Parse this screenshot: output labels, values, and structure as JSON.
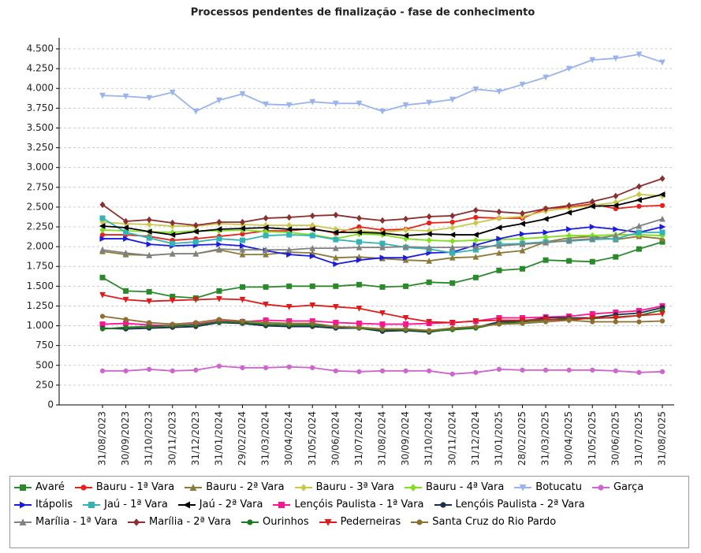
{
  "chart_data": {
    "type": "line",
    "title": "Processos pendentes de finalização - fase de conhecimento",
    "categories": [
      "31/08/2023",
      "30/09/2023",
      "31/10/2023",
      "30/11/2023",
      "31/12/2023",
      "31/01/2024",
      "29/02/2024",
      "31/03/2024",
      "30/04/2024",
      "31/05/2024",
      "30/06/2024",
      "31/07/2024",
      "31/08/2024",
      "30/09/2024",
      "31/10/2024",
      "30/11/2024",
      "31/12/2024",
      "31/01/2025",
      "28/02/2025",
      "31/03/2025",
      "30/04/2025",
      "31/05/2025",
      "30/06/2025",
      "31/07/2025",
      "31/08/2025"
    ],
    "ylim": [
      0,
      4500
    ],
    "yticks": [
      0,
      250,
      500,
      750,
      {
        "value": 1000,
        "label": "1.000"
      },
      {
        "value": 1250,
        "label": "1.250"
      },
      {
        "value": 1500,
        "label": "1.500"
      },
      {
        "value": 1750,
        "label": "1.750"
      },
      {
        "value": 2000,
        "label": "2.000"
      },
      {
        "value": 2250,
        "label": "2.250"
      },
      {
        "value": 2500,
        "label": "2.500"
      },
      {
        "value": 2750,
        "label": "2.750"
      },
      {
        "value": 3000,
        "label": "3.000"
      },
      {
        "value": 3250,
        "label": "3.250"
      },
      {
        "value": 3500,
        "label": "3.500"
      },
      {
        "value": 3750,
        "label": "3.750"
      },
      {
        "value": 4000,
        "label": "4.000"
      },
      {
        "value": 4250,
        "label": "4.250"
      },
      {
        "value": 4500,
        "label": "4.500"
      }
    ],
    "grid": true,
    "legend": "bottom",
    "series": [
      {
        "name": "Avaré",
        "color": "#2a8a2a",
        "marker": "square",
        "values": [
          1610,
          1440,
          1430,
          1370,
          1350,
          1440,
          1490,
          1490,
          1500,
          1500,
          1500,
          1520,
          1490,
          1500,
          1550,
          1540,
          1610,
          1700,
          1720,
          1830,
          1820,
          1810,
          1870,
          1970,
          2060
        ]
      },
      {
        "name": "Bauru - 1ª Vara",
        "color": "#e8211a",
        "marker": "circle",
        "values": [
          2150,
          2150,
          2130,
          2080,
          2100,
          2130,
          2160,
          2200,
          2200,
          2230,
          2170,
          2250,
          2210,
          2220,
          2300,
          2310,
          2370,
          2360,
          2360,
          2480,
          2500,
          2540,
          2480,
          2510,
          2520
        ]
      },
      {
        "name": "Bauru - 2ª Vara",
        "color": "#8b7a3a",
        "marker": "triangle-up",
        "values": [
          1940,
          1900,
          1890,
          1910,
          1910,
          1960,
          1900,
          1900,
          1930,
          1920,
          1860,
          1870,
          1850,
          1830,
          1820,
          1860,
          1870,
          1920,
          1950,
          2060,
          2110,
          2130,
          2090,
          2130,
          2100
        ]
      },
      {
        "name": "Bauru - 3ª Vara",
        "color": "#c8c84a",
        "marker": "diamond",
        "values": [
          2310,
          2290,
          2280,
          2260,
          2260,
          2290,
          2280,
          2270,
          2270,
          2270,
          2220,
          2200,
          2180,
          2210,
          2200,
          2240,
          2300,
          2360,
          2380,
          2450,
          2490,
          2520,
          2560,
          2660,
          2640
        ]
      },
      {
        "name": "Bauru - 4ª Vara",
        "color": "#7fe01a",
        "marker": "diamond",
        "values": [
          2210,
          2200,
          2190,
          2180,
          2200,
          2200,
          2210,
          2190,
          2180,
          2150,
          2100,
          2160,
          2150,
          2100,
          2080,
          2070,
          2080,
          2090,
          2100,
          2120,
          2140,
          2140,
          2150,
          2150,
          2140
        ]
      },
      {
        "name": "Botucatu",
        "color": "#99b4ec",
        "marker": "triangle-down",
        "values": [
          3910,
          3900,
          3880,
          3950,
          3710,
          3850,
          3930,
          3800,
          3790,
          3830,
          3810,
          3810,
          3710,
          3790,
          3820,
          3860,
          3990,
          3960,
          4050,
          4140,
          4250,
          4360,
          4380,
          4430,
          4330
        ]
      },
      {
        "name": "Garça",
        "color": "#cc66cc",
        "marker": "circle",
        "values": [
          430,
          430,
          450,
          430,
          440,
          490,
          470,
          470,
          480,
          470,
          430,
          420,
          430,
          430,
          430,
          390,
          410,
          450,
          440,
          440,
          440,
          440,
          430,
          410,
          420
        ]
      },
      {
        "name": "Itápolis",
        "color": "#1a1ae0",
        "marker": "triangle-right",
        "values": [
          2100,
          2100,
          2030,
          2010,
          2020,
          2030,
          2010,
          1950,
          1900,
          1880,
          1780,
          1830,
          1860,
          1860,
          1920,
          1930,
          2020,
          2100,
          2160,
          2180,
          2220,
          2250,
          2220,
          2180,
          2250
        ]
      },
      {
        "name": "Jaú - 1ª Vara",
        "color": "#33b3b3",
        "marker": "square",
        "values": [
          2360,
          2180,
          2110,
          2040,
          2060,
          2100,
          2080,
          2140,
          2150,
          2140,
          2090,
          2060,
          2040,
          1990,
          1970,
          1920,
          1960,
          2030,
          2040,
          2060,
          2070,
          2090,
          2100,
          2180,
          2180
        ]
      },
      {
        "name": "Jaú - 2ª Vara",
        "color": "#000000",
        "marker": "triangle-left",
        "values": [
          2260,
          2240,
          2190,
          2150,
          2190,
          2220,
          2230,
          2240,
          2220,
          2220,
          2180,
          2180,
          2170,
          2140,
          2160,
          2150,
          2150,
          2240,
          2290,
          2350,
          2430,
          2510,
          2520,
          2590,
          2660
        ]
      },
      {
        "name": "Lençóis Paulista - 1ª Vara",
        "color": "#ff1493",
        "marker": "square",
        "values": [
          1020,
          1030,
          1010,
          1000,
          1020,
          1060,
          1050,
          1070,
          1060,
          1060,
          1040,
          1030,
          1020,
          1020,
          1030,
          1040,
          1060,
          1100,
          1100,
          1110,
          1120,
          1150,
          1170,
          1190,
          1250
        ]
      },
      {
        "name": "Lençóis Paulista - 2ª Vara",
        "color": "#1c2f4a",
        "marker": "circle",
        "values": [
          970,
          960,
          970,
          980,
          990,
          1040,
          1030,
          1000,
          990,
          990,
          970,
          970,
          930,
          940,
          920,
          960,
          980,
          1050,
          1060,
          1100,
          1100,
          1100,
          1140,
          1160,
          1230
        ]
      },
      {
        "name": "Marília - 1ª Vara",
        "color": "#808080",
        "marker": "triangle-up",
        "values": [
          1960,
          1920,
          1890,
          1910,
          1910,
          1970,
          1960,
          1960,
          1960,
          1980,
          1980,
          1990,
          1990,
          2000,
          1990,
          1990,
          2000,
          2010,
          2030,
          2050,
          2080,
          2100,
          2140,
          2260,
          2350
        ]
      },
      {
        "name": "Marília - 2ª Vara",
        "color": "#8b3030",
        "marker": "diamond",
        "values": [
          2530,
          2320,
          2340,
          2300,
          2270,
          2310,
          2310,
          2360,
          2370,
          2390,
          2400,
          2360,
          2330,
          2350,
          2380,
          2390,
          2460,
          2440,
          2420,
          2480,
          2520,
          2570,
          2640,
          2760,
          2860
        ]
      },
      {
        "name": "Ourinhos",
        "color": "#1e7a1e",
        "marker": "circle",
        "values": [
          960,
          980,
          990,
          1000,
          1010,
          1050,
          1040,
          1020,
          1010,
          1010,
          990,
          970,
          950,
          950,
          930,
          950,
          970,
          1030,
          1050,
          1070,
          1090,
          1090,
          1110,
          1130,
          1200
        ]
      },
      {
        "name": "Pederneiras",
        "color": "#e01a1a",
        "marker": "triangle-down",
        "values": [
          1390,
          1330,
          1310,
          1320,
          1330,
          1340,
          1330,
          1270,
          1240,
          1260,
          1240,
          1220,
          1160,
          1100,
          1050,
          1040,
          1060,
          1070,
          1070,
          1080,
          1070,
          1100,
          1100,
          1130,
          1150
        ]
      },
      {
        "name": "Santa Cruz do Rio Pardo",
        "color": "#8b7030",
        "marker": "circle",
        "values": [
          1120,
          1080,
          1040,
          1020,
          1040,
          1080,
          1060,
          1040,
          1030,
          1030,
          990,
          980,
          960,
          960,
          940,
          970,
          990,
          1020,
          1030,
          1050,
          1070,
          1050,
          1050,
          1050,
          1060
        ]
      }
    ]
  }
}
